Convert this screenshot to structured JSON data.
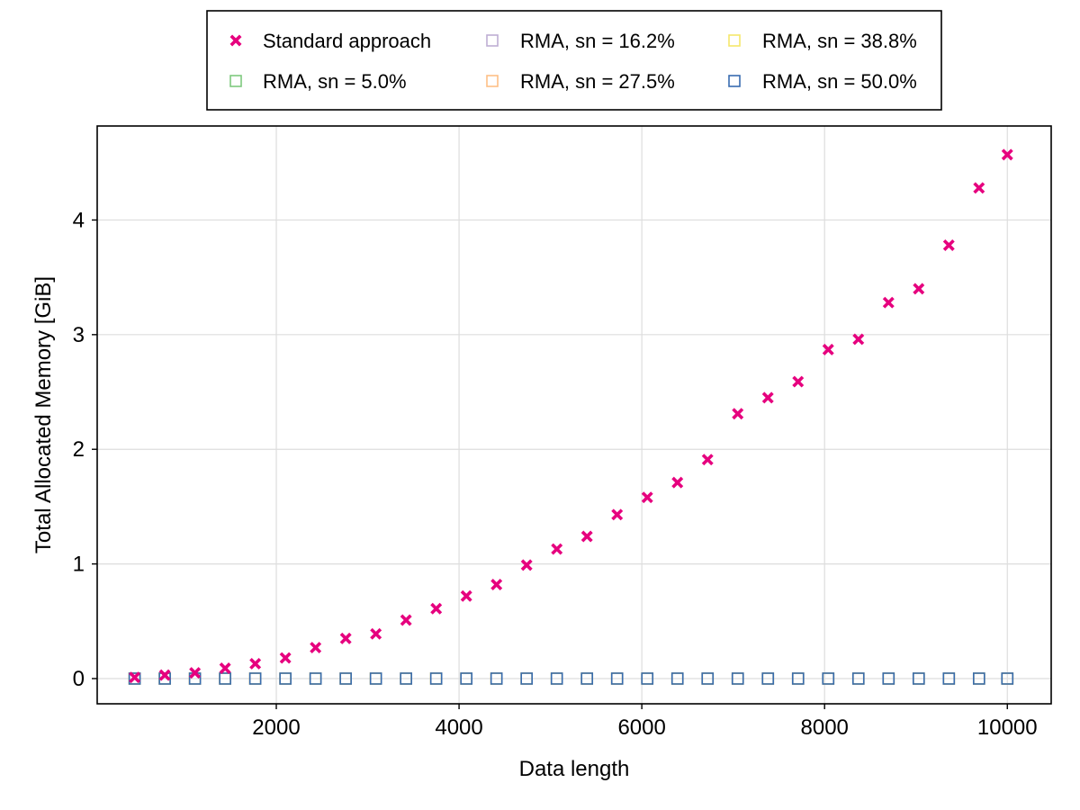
{
  "chart_data": {
    "type": "scatter",
    "title": "",
    "xlabel": "Data length",
    "ylabel": "Total Allocated Memory [GiB]",
    "xlim": [
      40,
      10480
    ],
    "ylim": [
      -0.22,
      4.82
    ],
    "xticks": [
      2000,
      4000,
      6000,
      8000,
      10000
    ],
    "xtick_labels": [
      "2000",
      "4000",
      "6000",
      "8000",
      "10000"
    ],
    "yticks": [
      0,
      1,
      2,
      3,
      4
    ],
    "ytick_labels": [
      "0",
      "1",
      "2",
      "3",
      "4"
    ],
    "grid": true,
    "legend_position": "top-center",
    "x": [
      450,
      780,
      1110,
      1440,
      1770,
      2100,
      2430,
      2760,
      3090,
      3420,
      3750,
      4080,
      4410,
      4740,
      5070,
      5400,
      5730,
      6060,
      6390,
      6720,
      7050,
      7380,
      7710,
      8040,
      8370,
      8700,
      9030,
      9360,
      9690,
      10000
    ],
    "series": [
      {
        "name": "Standard approach",
        "marker": "x",
        "color": "#e6007e",
        "values": [
          0.01,
          0.03,
          0.05,
          0.09,
          0.13,
          0.18,
          0.27,
          0.35,
          0.39,
          0.51,
          0.61,
          0.72,
          0.82,
          0.99,
          1.13,
          1.24,
          1.43,
          1.58,
          1.71,
          1.91,
          2.31,
          2.45,
          2.59,
          2.87,
          2.96,
          3.28,
          3.4,
          3.78,
          4.28,
          4.57
        ]
      },
      {
        "name": "RMA, sn = 5.0%",
        "marker": "square",
        "color": "#7fc97f",
        "values": [
          0,
          0,
          0,
          0,
          0,
          0,
          0,
          0,
          0,
          0,
          0,
          0,
          0,
          0,
          0,
          0,
          0,
          0,
          0,
          0,
          0,
          0,
          0,
          0,
          0,
          0,
          0,
          0,
          0,
          0
        ]
      },
      {
        "name": "RMA, sn = 16.2%",
        "marker": "square",
        "color": "#beaed4",
        "values": [
          0,
          0,
          0,
          0,
          0,
          0,
          0,
          0,
          0,
          0,
          0,
          0,
          0,
          0,
          0,
          0,
          0,
          0,
          0,
          0,
          0,
          0,
          0,
          0,
          0,
          0,
          0,
          0,
          0,
          0
        ]
      },
      {
        "name": "RMA, sn = 27.5%",
        "marker": "square",
        "color": "#fdc086",
        "values": [
          0,
          0,
          0,
          0,
          0,
          0,
          0,
          0,
          0,
          0,
          0,
          0,
          0,
          0,
          0,
          0,
          0,
          0,
          0,
          0,
          0,
          0,
          0,
          0,
          0,
          0,
          0,
          0,
          0,
          0
        ]
      },
      {
        "name": "RMA, sn = 38.8%",
        "marker": "square",
        "color": "#f5e86b",
        "values": [
          0,
          0,
          0,
          0,
          0,
          0,
          0,
          0,
          0,
          0,
          0,
          0,
          0,
          0,
          0,
          0,
          0,
          0,
          0,
          0,
          0,
          0,
          0,
          0,
          0,
          0,
          0,
          0,
          0,
          0
        ]
      },
      {
        "name": "RMA, sn = 50.0%",
        "marker": "square",
        "color": "#386cb0",
        "values": [
          0,
          0,
          0,
          0,
          0,
          0,
          0,
          0,
          0,
          0,
          0,
          0,
          0,
          0,
          0,
          0,
          0,
          0,
          0,
          0,
          0,
          0,
          0,
          0,
          0,
          0,
          0,
          0,
          0,
          0
        ]
      }
    ]
  }
}
